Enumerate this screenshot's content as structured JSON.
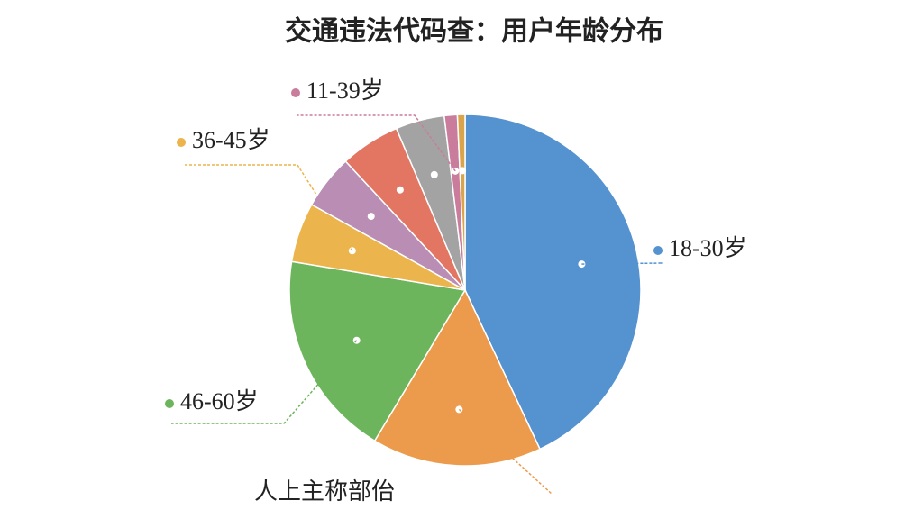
{
  "chart_data": {
    "type": "pie",
    "title": "交通违法代码查：用户年龄分布",
    "categories": [
      "18-30岁",
      "人上主称部佁",
      "46-60岁",
      "36-45岁",
      null,
      null,
      null,
      "11-39岁",
      null
    ],
    "values": [
      43,
      15.6,
      19,
      5.5,
      5,
      5.5,
      4.5,
      1.2,
      0.7
    ],
    "colors": [
      "#5592d0",
      "#ec9b4c",
      "#6db55c",
      "#ebb44c",
      "#b98db4",
      "#e27662",
      "#a3a3a3",
      "#c97c9c",
      "#d9a44c"
    ]
  }
}
